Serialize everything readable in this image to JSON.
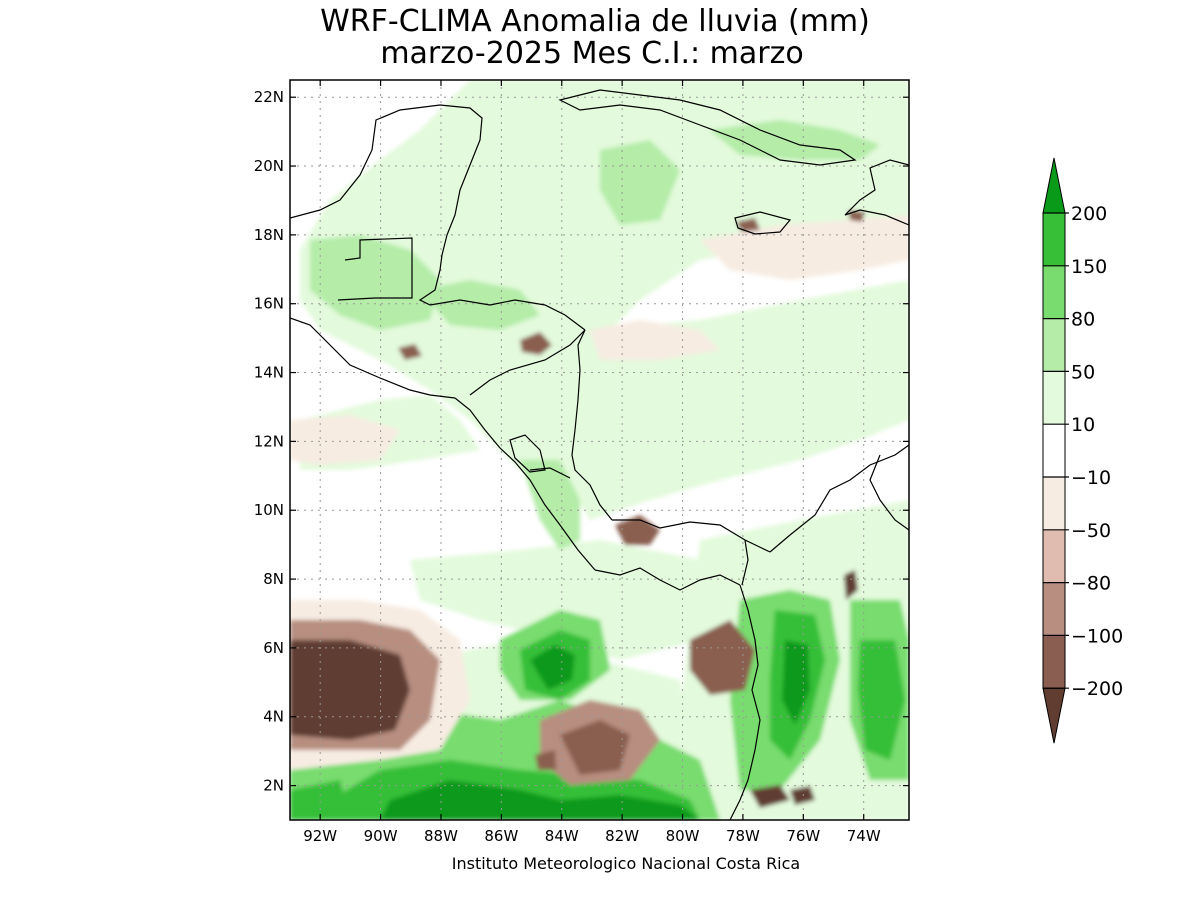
{
  "title": {
    "line1": "WRF-CLIMA Anomalia de lluvia (mm)",
    "line2": "marzo-2025 Mes C.I.: marzo"
  },
  "credit": "Instituto Meteorologico Nacional Costa Rica",
  "map": {
    "lon_range": [
      -93.0,
      -72.5
    ],
    "lat_range": [
      1.0,
      22.5
    ],
    "x_ticks": [
      {
        "lon": -92,
        "label": "92W"
      },
      {
        "lon": -90,
        "label": "90W"
      },
      {
        "lon": -88,
        "label": "88W"
      },
      {
        "lon": -86,
        "label": "86W"
      },
      {
        "lon": -84,
        "label": "84W"
      },
      {
        "lon": -82,
        "label": "82W"
      },
      {
        "lon": -80,
        "label": "80W"
      },
      {
        "lon": -78,
        "label": "78W"
      },
      {
        "lon": -76,
        "label": "76W"
      },
      {
        "lon": -74,
        "label": "74W"
      }
    ],
    "y_ticks": [
      {
        "lat": 22,
        "label": "22N"
      },
      {
        "lat": 20,
        "label": "20N"
      },
      {
        "lat": 18,
        "label": "18N"
      },
      {
        "lat": 16,
        "label": "16N"
      },
      {
        "lat": 14,
        "label": "14N"
      },
      {
        "lat": 12,
        "label": "12N"
      },
      {
        "lat": 10,
        "label": "10N"
      },
      {
        "lat": 8,
        "label": "8N"
      },
      {
        "lat": 6,
        "label": "6N"
      },
      {
        "lat": 4,
        "label": "4N"
      },
      {
        "lat": 2,
        "label": "2N"
      }
    ],
    "gridlines": "dotted"
  },
  "colorbar": {
    "levels": [
      "200",
      "150",
      "80",
      "50",
      "10",
      "-10",
      "-50",
      "-80",
      "-100",
      "-200"
    ],
    "colors": [
      "#0a9a1a",
      "#36bf37",
      "#78dc6e",
      "#b4eca8",
      "#e3fadc",
      "#ffffff",
      "#f7ece2",
      "#e0bcb0",
      "#b78e80",
      "#8a5e50",
      "#603d30"
    ]
  },
  "regions": {
    "wet": [
      "Peten/Yucatan",
      "Pacific off Colombia",
      "Central Caribbean Sea",
      "Southern Pacific 2N-6N"
    ],
    "dry": [
      "Pacific 4N-7N 89W-93W",
      "Northern Honduras",
      "Central Panama",
      "Pacific 2N-4N 82W-85W",
      "Eastern Pacific coast of Colombia"
    ]
  }
}
